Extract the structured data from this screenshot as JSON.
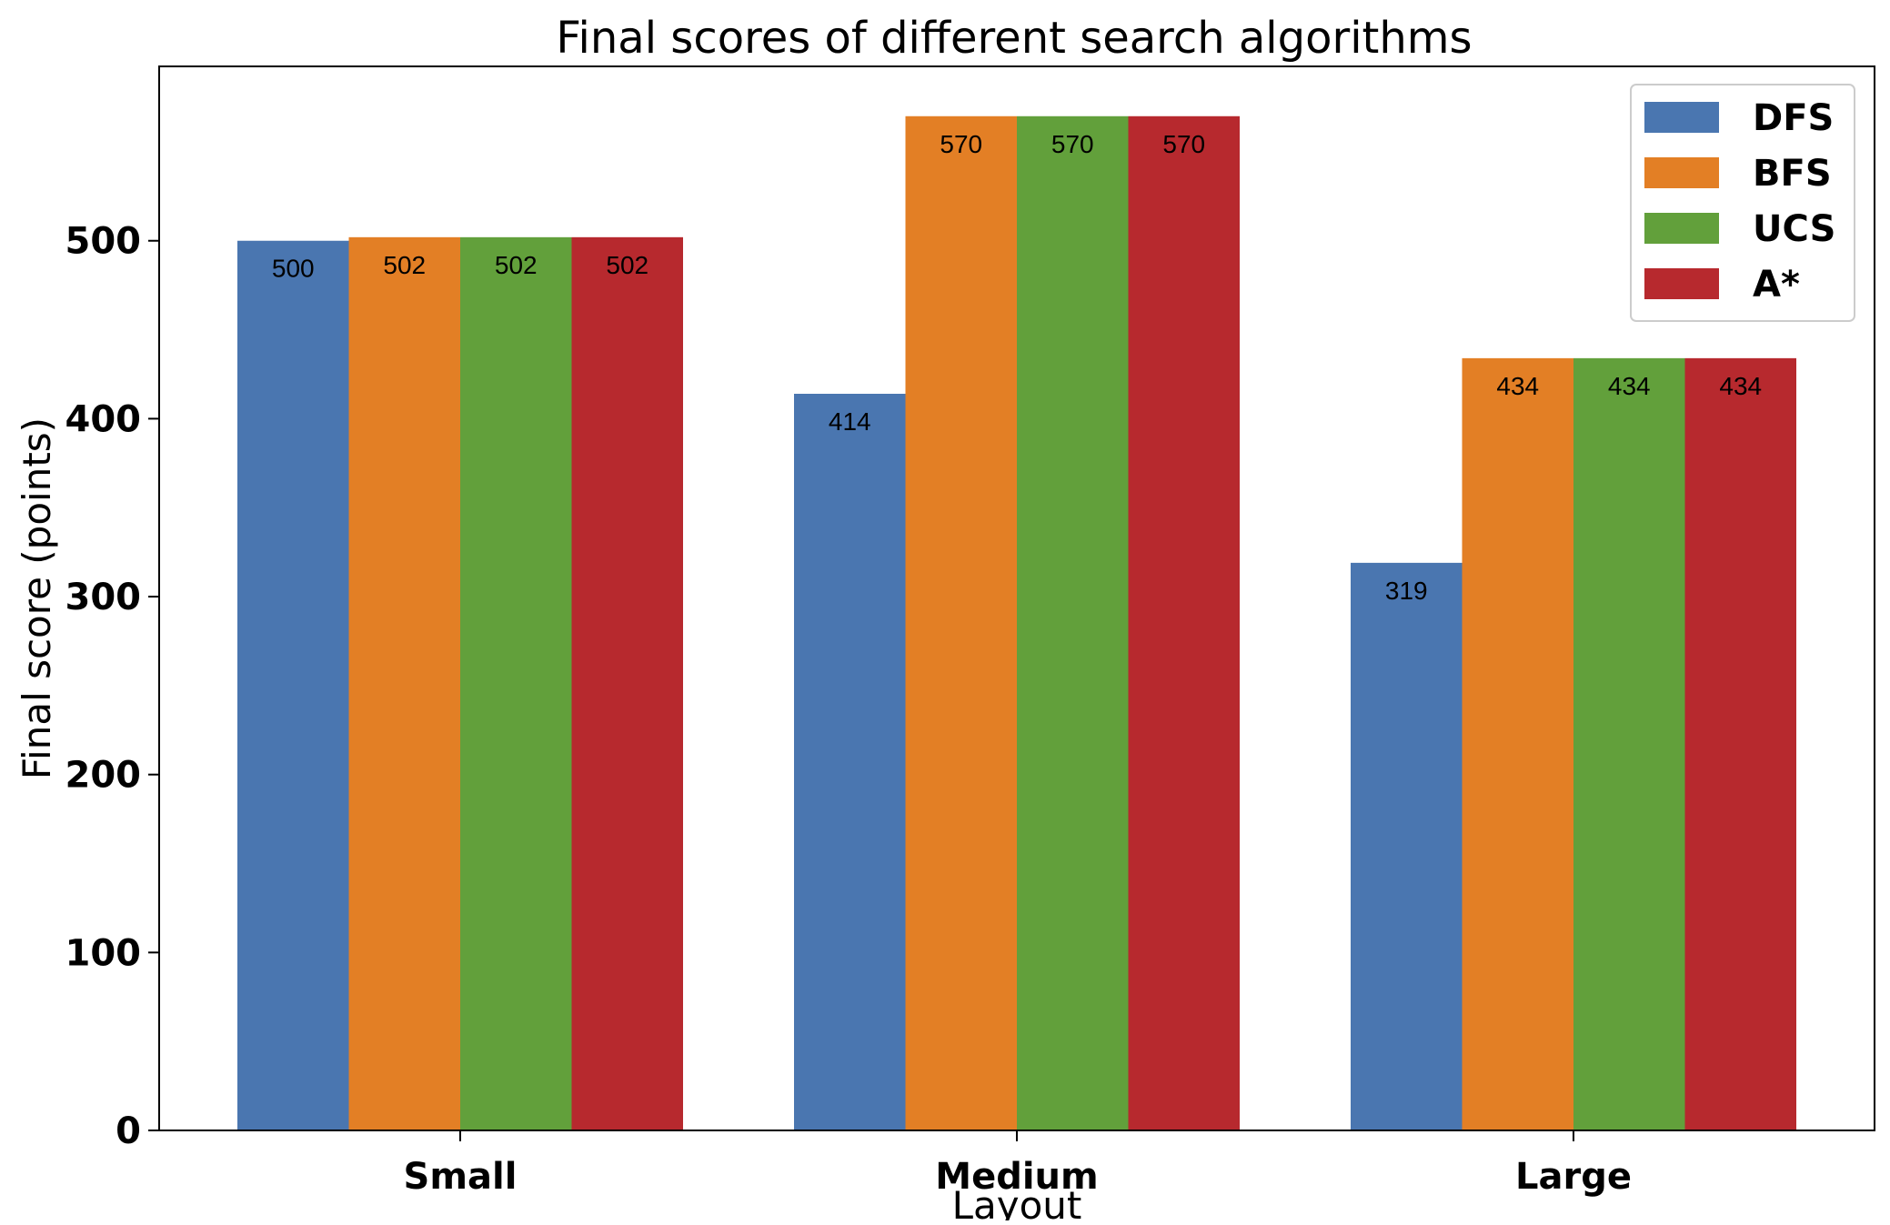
{
  "chart_data": {
    "type": "bar",
    "title": "Final scores of different search algorithms",
    "xlabel": "Layout",
    "ylabel": "Final score (points)",
    "categories": [
      "Small",
      "Medium",
      "Large"
    ],
    "series": [
      {
        "name": "DFS",
        "color": "#4a76b0",
        "values": [
          500,
          414,
          319
        ]
      },
      {
        "name": "BFS",
        "color": "#e37f25",
        "values": [
          502,
          570,
          434
        ]
      },
      {
        "name": "UCS",
        "color": "#62a03b",
        "values": [
          502,
          570,
          434
        ]
      },
      {
        "name": "A*",
        "color": "#b7292e",
        "values": [
          502,
          570,
          434
        ]
      }
    ],
    "ylim": [
      0,
      598
    ],
    "yticks": [
      0,
      100,
      200,
      300,
      400,
      500
    ],
    "grid": false,
    "legend_position": "top-right"
  }
}
